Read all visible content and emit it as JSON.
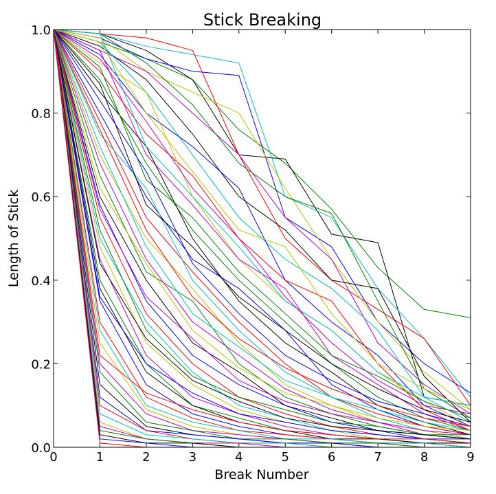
{
  "chart_data": {
    "type": "line",
    "title": "Stick Breaking",
    "xlabel": "Break Number",
    "ylabel": "Length of Stick",
    "xlim": [
      0,
      9
    ],
    "ylim": [
      0.0,
      1.0
    ],
    "x_ticks": [
      "0",
      "1",
      "2",
      "3",
      "4",
      "5",
      "6",
      "7",
      "8",
      "9"
    ],
    "y_ticks": [
      "0.0",
      "0.2",
      "0.4",
      "0.6",
      "0.8",
      "1.0"
    ],
    "grid": false,
    "legend": "none",
    "palette": [
      "#0000ff",
      "#008000",
      "#ff0000",
      "#00bfbf",
      "#bf00bf",
      "#bfbf00",
      "#000000"
    ],
    "x": [
      0,
      1,
      2,
      3,
      4,
      5,
      6,
      7,
      8,
      9
    ],
    "series": [
      {
        "color": "#008000",
        "values": [
          1.0,
          0.97,
          0.93,
          0.88,
          0.76,
          0.68,
          0.57,
          0.43,
          0.33,
          0.31
        ]
      },
      {
        "color": "#000000",
        "values": [
          1.0,
          0.99,
          0.95,
          0.88,
          0.7,
          0.69,
          0.51,
          0.49,
          0.12,
          0.1
        ]
      },
      {
        "color": "#00bfbf",
        "values": [
          1.0,
          0.99,
          0.96,
          0.94,
          0.92,
          0.6,
          0.55,
          0.38,
          0.26,
          0.12
        ]
      },
      {
        "color": "#0000ff",
        "values": [
          1.0,
          0.98,
          0.93,
          0.9,
          0.89,
          0.55,
          0.48,
          0.3,
          0.2,
          0.13
        ]
      },
      {
        "color": "#ff0000",
        "values": [
          1.0,
          0.99,
          0.98,
          0.95,
          0.7,
          0.5,
          0.4,
          0.33,
          0.26,
          0.1
        ]
      },
      {
        "color": "#bfbf00",
        "values": [
          1.0,
          0.98,
          0.9,
          0.85,
          0.8,
          0.62,
          0.45,
          0.3,
          0.18,
          0.09
        ]
      },
      {
        "color": "#bf00bf",
        "values": [
          1.0,
          0.95,
          0.9,
          0.8,
          0.7,
          0.55,
          0.45,
          0.25,
          0.15,
          0.08
        ]
      },
      {
        "color": "#008000",
        "values": [
          1.0,
          0.99,
          0.92,
          0.82,
          0.68,
          0.6,
          0.56,
          0.35,
          0.14,
          0.07
        ]
      },
      {
        "color": "#000000",
        "values": [
          1.0,
          0.96,
          0.88,
          0.75,
          0.6,
          0.52,
          0.4,
          0.38,
          0.17,
          0.06
        ]
      },
      {
        "color": "#00bfbf",
        "values": [
          1.0,
          0.97,
          0.85,
          0.7,
          0.55,
          0.45,
          0.38,
          0.28,
          0.12,
          0.06
        ]
      },
      {
        "color": "#0000ff",
        "values": [
          1.0,
          0.94,
          0.8,
          0.72,
          0.62,
          0.4,
          0.3,
          0.22,
          0.1,
          0.05
        ]
      },
      {
        "color": "#ff0000",
        "values": [
          1.0,
          0.9,
          0.75,
          0.65,
          0.5,
          0.4,
          0.35,
          0.2,
          0.09,
          0.04
        ]
      },
      {
        "color": "#bfbf00",
        "values": [
          1.0,
          0.92,
          0.85,
          0.6,
          0.45,
          0.35,
          0.28,
          0.18,
          0.11,
          0.05
        ]
      },
      {
        "color": "#bf00bf",
        "values": [
          1.0,
          0.95,
          0.7,
          0.58,
          0.45,
          0.38,
          0.22,
          0.15,
          0.08,
          0.04
        ]
      },
      {
        "color": "#008000",
        "values": [
          1.0,
          0.88,
          0.68,
          0.52,
          0.4,
          0.3,
          0.2,
          0.12,
          0.07,
          0.04
        ]
      },
      {
        "color": "#000000",
        "values": [
          1.0,
          0.85,
          0.72,
          0.5,
          0.35,
          0.25,
          0.18,
          0.1,
          0.06,
          0.03
        ]
      },
      {
        "color": "#0000ff",
        "values": [
          1.0,
          0.8,
          0.6,
          0.45,
          0.38,
          0.28,
          0.15,
          0.09,
          0.05,
          0.03
        ]
      },
      {
        "color": "#ff0000",
        "values": [
          1.0,
          0.78,
          0.55,
          0.42,
          0.3,
          0.2,
          0.12,
          0.08,
          0.05,
          0.03
        ]
      },
      {
        "color": "#00bfbf",
        "values": [
          1.0,
          0.75,
          0.62,
          0.4,
          0.28,
          0.18,
          0.12,
          0.07,
          0.04,
          0.02
        ]
      },
      {
        "color": "#bfbf00",
        "values": [
          1.0,
          0.7,
          0.5,
          0.38,
          0.25,
          0.15,
          0.1,
          0.06,
          0.04,
          0.02
        ]
      },
      {
        "color": "#bf00bf",
        "values": [
          1.0,
          0.68,
          0.45,
          0.3,
          0.22,
          0.14,
          0.09,
          0.06,
          0.03,
          0.02
        ]
      },
      {
        "color": "#008000",
        "values": [
          1.0,
          0.65,
          0.42,
          0.35,
          0.2,
          0.12,
          0.08,
          0.05,
          0.03,
          0.02
        ]
      },
      {
        "color": "#000000",
        "values": [
          1.0,
          0.6,
          0.4,
          0.25,
          0.18,
          0.1,
          0.07,
          0.04,
          0.03,
          0.02
        ]
      },
      {
        "color": "#0000ff",
        "values": [
          1.0,
          0.58,
          0.35,
          0.22,
          0.15,
          0.1,
          0.06,
          0.04,
          0.02,
          0.01
        ]
      },
      {
        "color": "#ff0000",
        "values": [
          1.0,
          0.55,
          0.32,
          0.2,
          0.12,
          0.08,
          0.05,
          0.03,
          0.02,
          0.01
        ]
      },
      {
        "color": "#00bfbf",
        "values": [
          1.0,
          0.5,
          0.3,
          0.18,
          0.1,
          0.07,
          0.04,
          0.03,
          0.02,
          0.01
        ]
      },
      {
        "color": "#bfbf00",
        "values": [
          1.0,
          0.48,
          0.25,
          0.15,
          0.09,
          0.06,
          0.04,
          0.02,
          0.01,
          0.01
        ]
      },
      {
        "color": "#bf00bf",
        "values": [
          1.0,
          0.45,
          0.22,
          0.12,
          0.08,
          0.05,
          0.03,
          0.02,
          0.01,
          0.01
        ]
      },
      {
        "color": "#008000",
        "values": [
          1.0,
          0.4,
          0.2,
          0.1,
          0.07,
          0.04,
          0.03,
          0.02,
          0.01,
          0.01
        ]
      },
      {
        "color": "#000000",
        "values": [
          1.0,
          0.38,
          0.18,
          0.1,
          0.06,
          0.04,
          0.02,
          0.02,
          0.01,
          0.01
        ]
      },
      {
        "color": "#0000ff",
        "values": [
          1.0,
          0.35,
          0.15,
          0.08,
          0.05,
          0.03,
          0.02,
          0.01,
          0.01,
          0.0
        ]
      },
      {
        "color": "#ff0000",
        "values": [
          1.0,
          0.3,
          0.12,
          0.07,
          0.04,
          0.03,
          0.02,
          0.01,
          0.01,
          0.0
        ]
      },
      {
        "color": "#00bfbf",
        "values": [
          1.0,
          0.28,
          0.1,
          0.06,
          0.04,
          0.02,
          0.02,
          0.01,
          0.01,
          0.0
        ]
      },
      {
        "color": "#bfbf00",
        "values": [
          1.0,
          0.25,
          0.09,
          0.05,
          0.03,
          0.02,
          0.01,
          0.01,
          0.0,
          0.0
        ]
      },
      {
        "color": "#bf00bf",
        "values": [
          1.0,
          0.2,
          0.08,
          0.04,
          0.03,
          0.02,
          0.01,
          0.01,
          0.0,
          0.0
        ]
      },
      {
        "color": "#008000",
        "values": [
          1.0,
          0.18,
          0.06,
          0.04,
          0.02,
          0.02,
          0.01,
          0.01,
          0.0,
          0.0
        ]
      },
      {
        "color": "#000000",
        "values": [
          1.0,
          0.15,
          0.05,
          0.03,
          0.02,
          0.01,
          0.01,
          0.0,
          0.0,
          0.0
        ]
      },
      {
        "color": "#0000ff",
        "values": [
          1.0,
          0.12,
          0.04,
          0.03,
          0.02,
          0.01,
          0.01,
          0.0,
          0.0,
          0.0
        ]
      },
      {
        "color": "#ff0000",
        "values": [
          1.0,
          0.1,
          0.04,
          0.02,
          0.01,
          0.01,
          0.0,
          0.0,
          0.0,
          0.0
        ]
      },
      {
        "color": "#00bfbf",
        "values": [
          1.0,
          0.08,
          0.03,
          0.02,
          0.01,
          0.01,
          0.0,
          0.0,
          0.0,
          0.0
        ]
      },
      {
        "color": "#bfbf00",
        "values": [
          1.0,
          0.06,
          0.02,
          0.01,
          0.01,
          0.0,
          0.0,
          0.0,
          0.0,
          0.0
        ]
      },
      {
        "color": "#bf00bf",
        "values": [
          1.0,
          0.05,
          0.02,
          0.01,
          0.01,
          0.0,
          0.0,
          0.0,
          0.0,
          0.0
        ]
      },
      {
        "color": "#008000",
        "values": [
          1.0,
          0.04,
          0.02,
          0.01,
          0.0,
          0.0,
          0.0,
          0.0,
          0.0,
          0.0
        ]
      },
      {
        "color": "#000000",
        "values": [
          1.0,
          0.03,
          0.01,
          0.01,
          0.0,
          0.0,
          0.0,
          0.0,
          0.0,
          0.0
        ]
      },
      {
        "color": "#0000ff",
        "values": [
          1.0,
          0.02,
          0.01,
          0.0,
          0.0,
          0.0,
          0.0,
          0.0,
          0.0,
          0.0
        ]
      },
      {
        "color": "#ff0000",
        "values": [
          1.0,
          0.01,
          0.0,
          0.0,
          0.0,
          0.0,
          0.0,
          0.0,
          0.0,
          0.0
        ]
      },
      {
        "color": "#00bfbf",
        "values": [
          1.0,
          0.99,
          0.72,
          0.6,
          0.48,
          0.35,
          0.28,
          0.18,
          0.12,
          0.1
        ]
      },
      {
        "color": "#bfbf00",
        "values": [
          1.0,
          0.97,
          0.8,
          0.66,
          0.52,
          0.48,
          0.32,
          0.2,
          0.14,
          0.09
        ]
      },
      {
        "color": "#bf00bf",
        "values": [
          1.0,
          0.93,
          0.78,
          0.62,
          0.5,
          0.36,
          0.25,
          0.16,
          0.1,
          0.08
        ]
      },
      {
        "color": "#008000",
        "values": [
          1.0,
          0.91,
          0.64,
          0.55,
          0.42,
          0.32,
          0.22,
          0.17,
          0.11,
          0.07
        ]
      },
      {
        "color": "#000000",
        "values": [
          1.0,
          0.87,
          0.58,
          0.48,
          0.36,
          0.28,
          0.2,
          0.14,
          0.09,
          0.06
        ]
      },
      {
        "color": "#0000ff",
        "values": [
          1.0,
          0.83,
          0.66,
          0.44,
          0.32,
          0.22,
          0.16,
          0.11,
          0.08,
          0.05
        ]
      },
      {
        "color": "#ff0000",
        "values": [
          1.0,
          0.76,
          0.52,
          0.36,
          0.26,
          0.19,
          0.14,
          0.1,
          0.07,
          0.05
        ]
      },
      {
        "color": "#00bfbf",
        "values": [
          1.0,
          0.72,
          0.48,
          0.32,
          0.24,
          0.16,
          0.12,
          0.09,
          0.06,
          0.04
        ]
      },
      {
        "color": "#bfbf00",
        "values": [
          1.0,
          0.62,
          0.44,
          0.28,
          0.19,
          0.13,
          0.1,
          0.07,
          0.05,
          0.04
        ]
      },
      {
        "color": "#bf00bf",
        "values": [
          1.0,
          0.57,
          0.36,
          0.26,
          0.16,
          0.11,
          0.08,
          0.06,
          0.04,
          0.03
        ]
      },
      {
        "color": "#008000",
        "values": [
          1.0,
          0.52,
          0.28,
          0.17,
          0.12,
          0.09,
          0.06,
          0.05,
          0.03,
          0.03
        ]
      },
      {
        "color": "#000000",
        "values": [
          1.0,
          0.44,
          0.26,
          0.16,
          0.11,
          0.07,
          0.05,
          0.04,
          0.03,
          0.02
        ]
      },
      {
        "color": "#0000ff",
        "values": [
          1.0,
          0.36,
          0.2,
          0.13,
          0.08,
          0.06,
          0.04,
          0.03,
          0.02,
          0.02
        ]
      },
      {
        "color": "#ff0000",
        "values": [
          1.0,
          0.22,
          0.13,
          0.09,
          0.06,
          0.04,
          0.03,
          0.02,
          0.02,
          0.01
        ]
      }
    ]
  }
}
